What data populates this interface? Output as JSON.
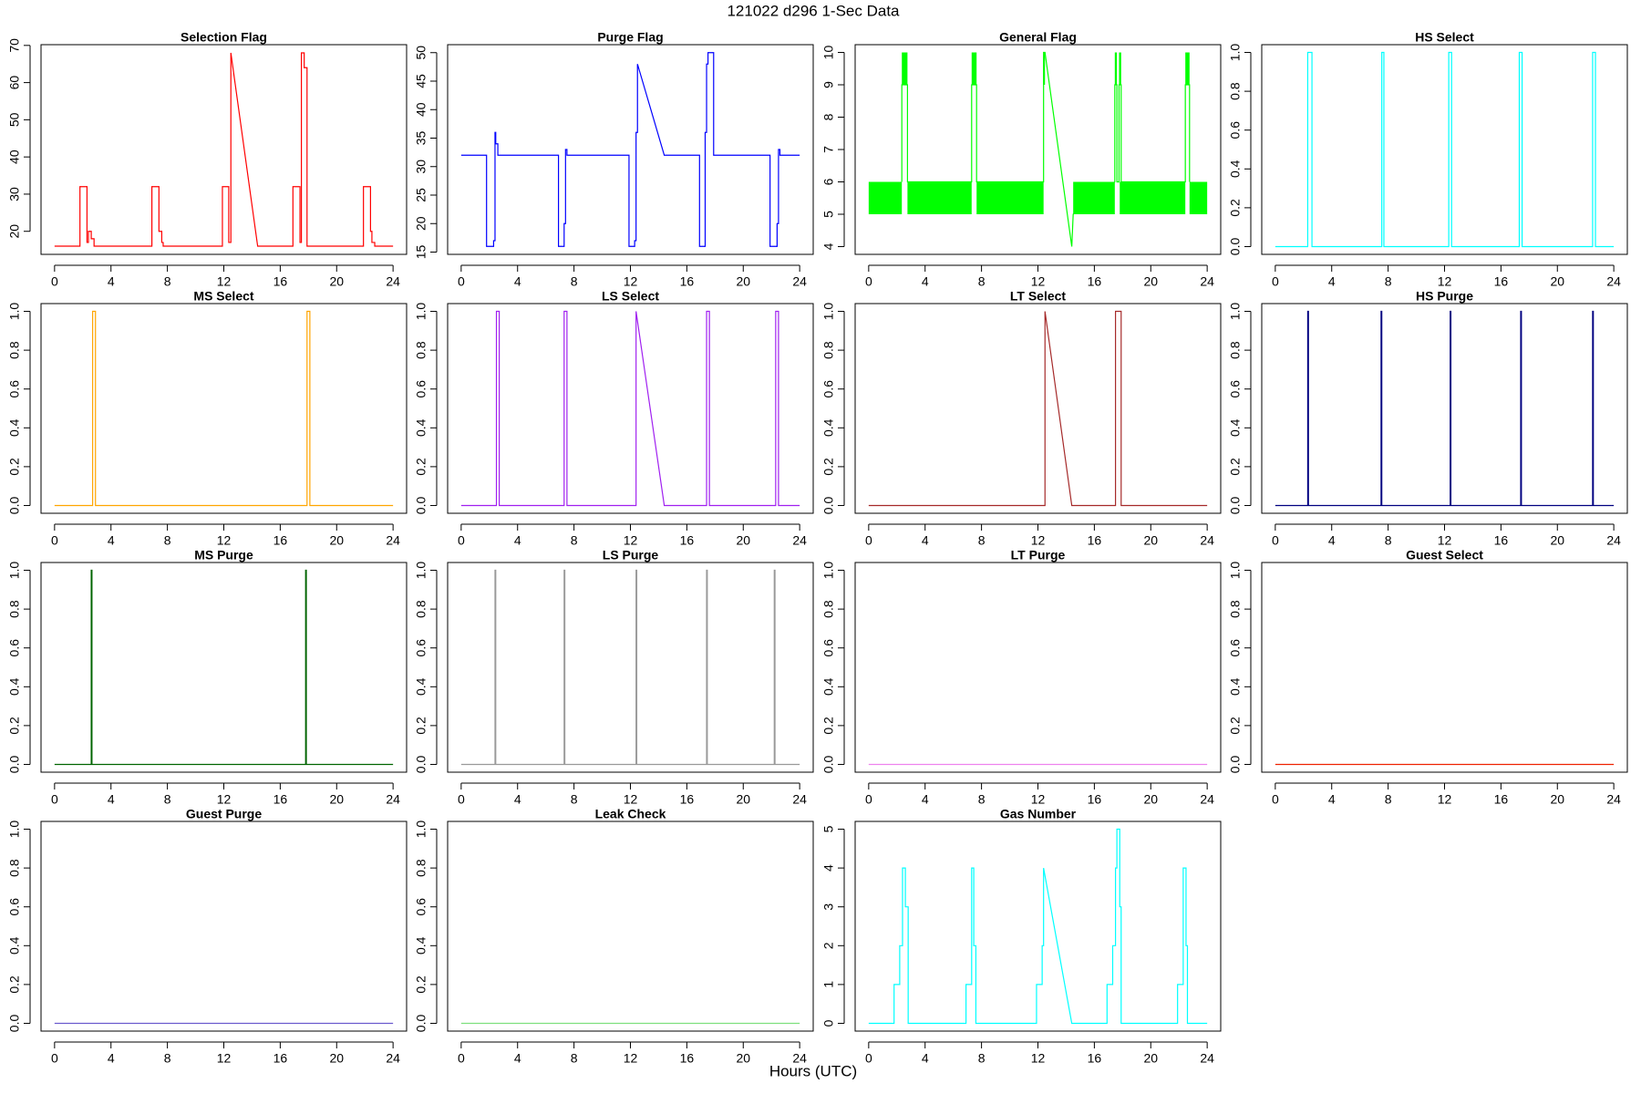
{
  "title": "121022   d296   1-Sec Data",
  "xlabel": "Hours (UTC)",
  "chart_data": [
    {
      "type": "line",
      "title": "Selection Flag",
      "color": "#ff0000",
      "xlim": [
        -0.96,
        24.96
      ],
      "xticks": [
        0,
        4,
        8,
        12,
        16,
        20,
        24
      ],
      "ylim": [
        13.8,
        70.2
      ],
      "yticks": [
        20,
        30,
        40,
        50,
        60,
        70
      ],
      "x": [
        0,
        1.8,
        1.8,
        2.3,
        2.3,
        2.4,
        2.4,
        2.6,
        2.6,
        2.8,
        2.8,
        6.9,
        6.9,
        7.4,
        7.4,
        7.6,
        7.6,
        7.7,
        7.7,
        11.9,
        11.9,
        12.35,
        12.35,
        12.5,
        12.5,
        14.4,
        16.9,
        16.9,
        17.4,
        17.4,
        17.5,
        17.5,
        17.7,
        17.7,
        17.9,
        17.9,
        21.9,
        21.9,
        22.4,
        22.4,
        22.5,
        22.5,
        22.7,
        22.7,
        24
      ],
      "values": [
        16,
        16,
        32,
        32,
        17,
        17,
        20,
        20,
        18,
        18,
        16,
        16,
        32,
        32,
        20,
        20,
        17,
        17,
        16,
        16,
        32,
        32,
        17,
        17,
        68,
        16,
        16,
        32,
        32,
        17,
        17,
        68,
        68,
        64,
        64,
        16,
        16,
        32,
        32,
        20,
        20,
        17,
        17,
        16,
        16
      ]
    },
    {
      "type": "line",
      "title": "Purge Flag",
      "color": "#0000ff",
      "xlim": [
        -0.96,
        24.96
      ],
      "xticks": [
        0,
        4,
        8,
        12,
        16,
        20,
        24
      ],
      "ylim": [
        14.6,
        51.4
      ],
      "yticks": [
        15,
        20,
        25,
        30,
        35,
        40,
        45,
        50
      ],
      "x": [
        0,
        1.8,
        1.8,
        2.3,
        2.3,
        2.4,
        2.4,
        2.45,
        2.45,
        2.6,
        2.6,
        6.9,
        6.9,
        7.3,
        7.3,
        7.4,
        7.4,
        7.5,
        7.5,
        11.9,
        11.9,
        12.3,
        12.3,
        12.4,
        12.4,
        12.5,
        12.5,
        14.4,
        16.9,
        16.9,
        17.3,
        17.3,
        17.4,
        17.4,
        17.5,
        17.5,
        17.7,
        17.7,
        17.9,
        17.9,
        21.9,
        21.9,
        22.4,
        22.4,
        22.5,
        22.5,
        22.6,
        22.6,
        24
      ],
      "values": [
        32,
        32,
        16,
        16,
        17,
        17,
        36,
        36,
        34,
        34,
        32,
        32,
        16,
        16,
        20,
        20,
        33,
        33,
        32,
        32,
        16,
        16,
        17,
        17,
        36,
        36,
        48,
        32,
        32,
        16,
        16,
        36,
        36,
        48,
        48,
        50,
        50,
        50,
        50,
        32,
        32,
        16,
        16,
        20,
        20,
        33,
        33,
        32,
        32
      ]
    },
    {
      "type": "line",
      "title": "General Flag",
      "color": "#00ff00",
      "xlim": [
        -0.96,
        24.96
      ],
      "xticks": [
        0,
        4,
        8,
        12,
        16,
        20,
        24
      ],
      "ylim": [
        3.76,
        10.24
      ],
      "yticks": [
        4,
        5,
        6,
        7,
        8,
        9,
        10
      ],
      "bands": [
        {
          "x": [
            0,
            2.35
          ],
          "values": [
            5,
            6
          ]
        },
        {
          "x": [
            2.75,
            7.3
          ],
          "values": [
            5,
            6
          ]
        },
        {
          "x": [
            7.65,
            12.4
          ],
          "values": [
            5,
            6
          ]
        },
        {
          "x": [
            14.5,
            17.45
          ],
          "values": [
            5,
            6
          ]
        },
        {
          "x": [
            17.8,
            22.45
          ],
          "values": [
            5,
            6
          ]
        },
        {
          "x": [
            22.75,
            24
          ],
          "values": [
            5,
            6
          ]
        },
        {
          "x": [
            2.35,
            2.75
          ],
          "values": [
            9,
            10
          ]
        },
        {
          "x": [
            7.3,
            7.65
          ],
          "values": [
            9,
            10
          ]
        },
        {
          "x": [
            12.4,
            12.5
          ],
          "values": [
            9,
            10
          ]
        },
        {
          "x": [
            17.45,
            17.6
          ],
          "values": [
            9,
            10
          ]
        },
        {
          "x": [
            17.75,
            17.9
          ],
          "values": [
            9,
            10
          ]
        },
        {
          "x": [
            22.45,
            22.75
          ],
          "values": [
            9,
            10
          ]
        }
      ],
      "x": [
        2.35,
        2.35,
        2.75,
        2.75,
        7.3,
        7.3,
        7.65,
        7.65,
        12.4,
        12.4,
        12.5,
        14.4,
        14.5,
        17.45,
        17.45,
        17.6,
        17.6,
        17.75,
        17.75,
        17.9,
        17.9,
        22.45,
        22.45,
        22.75,
        22.75
      ],
      "values": [
        6,
        9,
        9,
        6,
        6,
        9,
        9,
        6,
        6,
        10,
        10,
        4,
        5,
        6,
        9,
        9,
        6,
        6,
        9,
        9,
        6,
        6,
        9,
        9,
        6
      ]
    },
    {
      "type": "line",
      "title": "HS Select",
      "color": "#00ffff",
      "xlim": [
        -0.96,
        24.96
      ],
      "xticks": [
        0,
        4,
        8,
        12,
        16,
        20,
        24
      ],
      "ylim": [
        -0.04,
        1.04
      ],
      "yticks": [
        {
          "value": 0,
          "label": "0.0"
        },
        0.2,
        0.4,
        0.6,
        0.8,
        {
          "value": 1,
          "label": "1.0"
        }
      ],
      "x": [
        0,
        2.3,
        2.3,
        2.6,
        2.6,
        7.55,
        7.55,
        7.7,
        7.7,
        12.3,
        12.3,
        12.5,
        12.5,
        17.3,
        17.3,
        17.5,
        17.5,
        22.5,
        22.5,
        22.7,
        22.7,
        24
      ],
      "values": [
        0,
        0,
        1,
        1,
        0,
        0,
        1,
        1,
        0,
        0,
        1,
        1,
        0,
        0,
        1,
        1,
        0,
        0,
        1,
        1,
        0,
        0
      ]
    },
    {
      "type": "line",
      "title": "MS Select",
      "color": "#ffa500",
      "xlim": [
        -0.96,
        24.96
      ],
      "xticks": [
        0,
        4,
        8,
        12,
        16,
        20,
        24
      ],
      "ylim": [
        -0.04,
        1.04
      ],
      "yticks": [
        {
          "value": 0,
          "label": "0.0"
        },
        0.2,
        0.4,
        0.6,
        0.8,
        {
          "value": 1,
          "label": "1.0"
        }
      ],
      "x": [
        0,
        2.7,
        2.7,
        2.9,
        2.9,
        17.9,
        17.9,
        18.1,
        18.1,
        24
      ],
      "values": [
        0,
        0,
        1,
        1,
        0,
        0,
        1,
        1,
        0,
        0
      ]
    },
    {
      "type": "line",
      "title": "LS Select",
      "color": "#a020f0",
      "xlim": [
        -0.96,
        24.96
      ],
      "xticks": [
        0,
        4,
        8,
        12,
        16,
        20,
        24
      ],
      "ylim": [
        -0.04,
        1.04
      ],
      "yticks": [
        {
          "value": 0,
          "label": "0.0"
        },
        0.2,
        0.4,
        0.6,
        0.8,
        {
          "value": 1,
          "label": "1.0"
        }
      ],
      "x": [
        0,
        2.5,
        2.5,
        2.7,
        2.7,
        7.3,
        7.3,
        7.5,
        7.5,
        12.4,
        12.4,
        14.4,
        17.4,
        17.4,
        17.6,
        17.6,
        22.3,
        22.3,
        22.5,
        22.5,
        24
      ],
      "values": [
        0,
        0,
        1,
        1,
        0,
        0,
        1,
        1,
        0,
        0,
        1,
        0,
        0,
        1,
        1,
        0,
        0,
        1,
        1,
        0,
        0
      ]
    },
    {
      "type": "line",
      "title": "LT Select",
      "color": "#a52a2a",
      "xlim": [
        -0.96,
        24.96
      ],
      "xticks": [
        0,
        4,
        8,
        12,
        16,
        20,
        24
      ],
      "ylim": [
        -0.04,
        1.04
      ],
      "yticks": [
        {
          "value": 0,
          "label": "0.0"
        },
        0.2,
        0.4,
        0.6,
        0.8,
        {
          "value": 1,
          "label": "1.0"
        }
      ],
      "x": [
        0,
        12.5,
        12.5,
        14.4,
        17.5,
        17.5,
        17.9,
        17.9,
        24
      ],
      "values": [
        0,
        0,
        1,
        0,
        0,
        1,
        1,
        0,
        0
      ]
    },
    {
      "type": "line",
      "title": "HS Purge",
      "color": "#000080",
      "xlim": [
        -0.96,
        24.96
      ],
      "xticks": [
        0,
        4,
        8,
        12,
        16,
        20,
        24
      ],
      "ylim": [
        -0.04,
        1.04
      ],
      "yticks": [
        {
          "value": 0,
          "label": "0.0"
        },
        0.2,
        0.4,
        0.6,
        0.8,
        {
          "value": 1,
          "label": "1.0"
        }
      ],
      "x": [
        0,
        2.3,
        2.3,
        2.35,
        2.35,
        7.5,
        7.5,
        7.55,
        7.55,
        12.4,
        12.4,
        12.45,
        12.45,
        17.4,
        17.4,
        17.45,
        17.45,
        22.5,
        22.5,
        22.55,
        22.55,
        24
      ],
      "values": [
        0,
        0,
        1,
        1,
        0,
        0,
        1,
        1,
        0,
        0,
        1,
        1,
        0,
        0,
        1,
        1,
        0,
        0,
        1,
        1,
        0,
        0
      ]
    },
    {
      "type": "line",
      "title": "MS Purge",
      "color": "#006400",
      "xlim": [
        -0.96,
        24.96
      ],
      "xticks": [
        0,
        4,
        8,
        12,
        16,
        20,
        24
      ],
      "ylim": [
        -0.04,
        1.04
      ],
      "yticks": [
        {
          "value": 0,
          "label": "0.0"
        },
        0.2,
        0.4,
        0.6,
        0.8,
        {
          "value": 1,
          "label": "1.0"
        }
      ],
      "x": [
        0,
        2.6,
        2.6,
        2.65,
        2.65,
        17.8,
        17.8,
        17.85,
        17.85,
        24
      ],
      "values": [
        0,
        0,
        1,
        1,
        0,
        0,
        1,
        1,
        0,
        0
      ]
    },
    {
      "type": "line",
      "title": "LS Purge",
      "color": "#999999",
      "xlim": [
        -0.96,
        24.96
      ],
      "xticks": [
        0,
        4,
        8,
        12,
        16,
        20,
        24
      ],
      "ylim": [
        -0.04,
        1.04
      ],
      "yticks": [
        {
          "value": 0,
          "label": "0.0"
        },
        0.2,
        0.4,
        0.6,
        0.8,
        {
          "value": 1,
          "label": "1.0"
        }
      ],
      "x": [
        0,
        2.4,
        2.4,
        2.45,
        2.45,
        7.3,
        7.3,
        7.35,
        7.35,
        12.4,
        12.4,
        12.45,
        12.45,
        17.4,
        17.4,
        17.45,
        17.45,
        22.2,
        22.2,
        22.25,
        22.25,
        24
      ],
      "values": [
        0,
        0,
        1,
        1,
        0,
        0,
        1,
        1,
        0,
        0,
        1,
        1,
        0,
        0,
        1,
        1,
        0,
        0,
        1,
        1,
        0,
        0
      ]
    },
    {
      "type": "line",
      "title": "LT Purge",
      "color": "#ee82ee",
      "xlim": [
        -0.96,
        24.96
      ],
      "xticks": [
        0,
        4,
        8,
        12,
        16,
        20,
        24
      ],
      "ylim": [
        -0.04,
        1.04
      ],
      "yticks": [
        {
          "value": 0,
          "label": "0.0"
        },
        0.2,
        0.4,
        0.6,
        0.8,
        {
          "value": 1,
          "label": "1.0"
        }
      ],
      "x": [
        0,
        24
      ],
      "values": [
        0,
        0
      ]
    },
    {
      "type": "line",
      "title": "Guest Select",
      "color": "#ee2200",
      "xlim": [
        -0.96,
        24.96
      ],
      "xticks": [
        0,
        4,
        8,
        12,
        16,
        20,
        24
      ],
      "ylim": [
        -0.04,
        1.04
      ],
      "yticks": [
        {
          "value": 0,
          "label": "0.0"
        },
        0.2,
        0.4,
        0.6,
        0.8,
        {
          "value": 1,
          "label": "1.0"
        }
      ],
      "x": [
        0,
        24
      ],
      "values": [
        0,
        0
      ]
    },
    {
      "type": "line",
      "title": "Guest Purge",
      "color": "#6a5acd",
      "xlim": [
        -0.96,
        24.96
      ],
      "xticks": [
        0,
        4,
        8,
        12,
        16,
        20,
        24
      ],
      "ylim": [
        -0.04,
        1.04
      ],
      "yticks": [
        {
          "value": 0,
          "label": "0.0"
        },
        0.2,
        0.4,
        0.6,
        0.8,
        {
          "value": 1,
          "label": "1.0"
        }
      ],
      "x": [
        0,
        24
      ],
      "values": [
        0,
        0
      ]
    },
    {
      "type": "line",
      "title": "Leak Check",
      "color": "#7ee07e",
      "xlim": [
        -0.96,
        24.96
      ],
      "xticks": [
        0,
        4,
        8,
        12,
        16,
        20,
        24
      ],
      "ylim": [
        -0.04,
        1.04
      ],
      "yticks": [
        {
          "value": 0,
          "label": "0.0"
        },
        0.2,
        0.4,
        0.6,
        0.8,
        {
          "value": 1,
          "label": "1.0"
        }
      ],
      "x": [
        0,
        24
      ],
      "values": [
        0,
        0
      ]
    },
    {
      "type": "line",
      "title": "Gas Number",
      "color": "#00ffff",
      "xlim": [
        -0.96,
        24.96
      ],
      "xticks": [
        0,
        4,
        8,
        12,
        16,
        20,
        24
      ],
      "ylim": [
        -0.2,
        5.2
      ],
      "yticks": [
        0,
        1,
        2,
        3,
        4,
        5
      ],
      "x": [
        0,
        1.8,
        1.8,
        2.2,
        2.2,
        2.4,
        2.4,
        2.6,
        2.6,
        2.8,
        2.8,
        6.9,
        6.9,
        7.3,
        7.3,
        7.45,
        7.45,
        7.6,
        7.6,
        11.9,
        11.9,
        12.3,
        12.3,
        12.4,
        12.4,
        14.4,
        16.9,
        16.9,
        17.3,
        17.3,
        17.5,
        17.5,
        17.6,
        17.6,
        17.8,
        17.8,
        17.9,
        17.9,
        21.9,
        21.9,
        22.3,
        22.3,
        22.5,
        22.5,
        22.6,
        22.6,
        24
      ],
      "values": [
        0,
        0,
        1,
        1,
        2,
        2,
        4,
        4,
        3,
        3,
        0,
        0,
        1,
        1,
        4,
        4,
        2,
        2,
        0,
        0,
        1,
        1,
        2,
        2,
        4,
        0,
        0,
        1,
        1,
        2,
        2,
        4,
        4,
        5,
        5,
        3,
        3,
        0,
        0,
        1,
        1,
        4,
        4,
        2,
        2,
        0,
        0
      ]
    }
  ]
}
